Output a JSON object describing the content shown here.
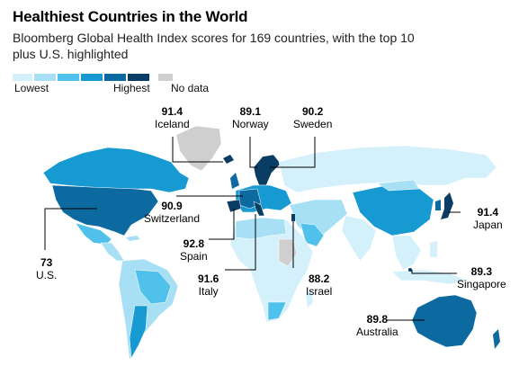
{
  "title": "Healthiest Countries in the World",
  "subtitle": "Bloomberg Global Health Index scores for 169 countries, with the top 10 plus U.S. highlighted",
  "legend": {
    "low_label": "Lowest",
    "high_label": "Highest",
    "nodata_label": "No data",
    "colors": [
      "#d4f0fb",
      "#a7e0f4",
      "#4fc1ea",
      "#179ad2",
      "#0d6aa0",
      "#0a3d63"
    ],
    "nodata_color": "#cfcfcf"
  },
  "callouts": [
    {
      "id": "iceland",
      "value": "91.4",
      "country": "Iceland"
    },
    {
      "id": "norway",
      "value": "89.1",
      "country": "Norway"
    },
    {
      "id": "sweden",
      "value": "90.2",
      "country": "Sweden"
    },
    {
      "id": "switzerland",
      "value": "90.9",
      "country": "Switzerland"
    },
    {
      "id": "japan",
      "value": "91.4",
      "country": "Japan"
    },
    {
      "id": "us",
      "value": "73",
      "country": "U.S."
    },
    {
      "id": "spain",
      "value": "92.8",
      "country": "Spain"
    },
    {
      "id": "italy",
      "value": "91.6",
      "country": "Italy"
    },
    {
      "id": "israel",
      "value": "88.2",
      "country": "Israel"
    },
    {
      "id": "singapore",
      "value": "89.3",
      "country": "Singapore"
    },
    {
      "id": "australia",
      "value": "89.8",
      "country": "Australia"
    }
  ]
}
